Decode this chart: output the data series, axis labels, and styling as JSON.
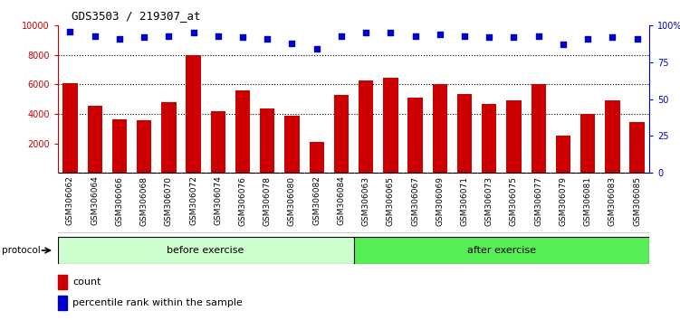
{
  "title": "GDS3503 / 219307_at",
  "categories": [
    "GSM306062",
    "GSM306064",
    "GSM306066",
    "GSM306068",
    "GSM306070",
    "GSM306072",
    "GSM306074",
    "GSM306076",
    "GSM306078",
    "GSM306080",
    "GSM306082",
    "GSM306084",
    "GSM306063",
    "GSM306065",
    "GSM306067",
    "GSM306069",
    "GSM306071",
    "GSM306073",
    "GSM306075",
    "GSM306077",
    "GSM306079",
    "GSM306081",
    "GSM306083",
    "GSM306085"
  ],
  "bar_values": [
    6100,
    4550,
    3650,
    3600,
    4800,
    8000,
    4200,
    5600,
    4350,
    3900,
    2100,
    5300,
    6300,
    6450,
    5100,
    6050,
    5350,
    4650,
    4900,
    6000,
    2500,
    4000,
    4900,
    3450
  ],
  "percentile_values": [
    96,
    93,
    91,
    92,
    93,
    95,
    93,
    92,
    91,
    88,
    84,
    93,
    95,
    95,
    93,
    94,
    93,
    92,
    92,
    93,
    87,
    91,
    92,
    91
  ],
  "bar_color": "#cc0000",
  "dot_color": "#0000cc",
  "ylim_left": [
    0,
    10000
  ],
  "ylim_right": [
    0,
    100
  ],
  "yticks_left": [
    2000,
    4000,
    6000,
    8000,
    10000
  ],
  "ytick_labels_right": [
    "0",
    "25",
    "50",
    "75",
    "100%"
  ],
  "ytick_vals_right": [
    0,
    25,
    50,
    75,
    100
  ],
  "grid_values": [
    4000,
    6000,
    8000
  ],
  "before_exercise_count": 12,
  "after_exercise_count": 12,
  "protocol_label": "protocol",
  "before_label": "before exercise",
  "after_label": "after exercise",
  "legend_bar_label": "count",
  "legend_dot_label": "percentile rank within the sample",
  "before_color": "#ccffcc",
  "after_color": "#55ee55",
  "xtick_bg": "#d0d0d0"
}
